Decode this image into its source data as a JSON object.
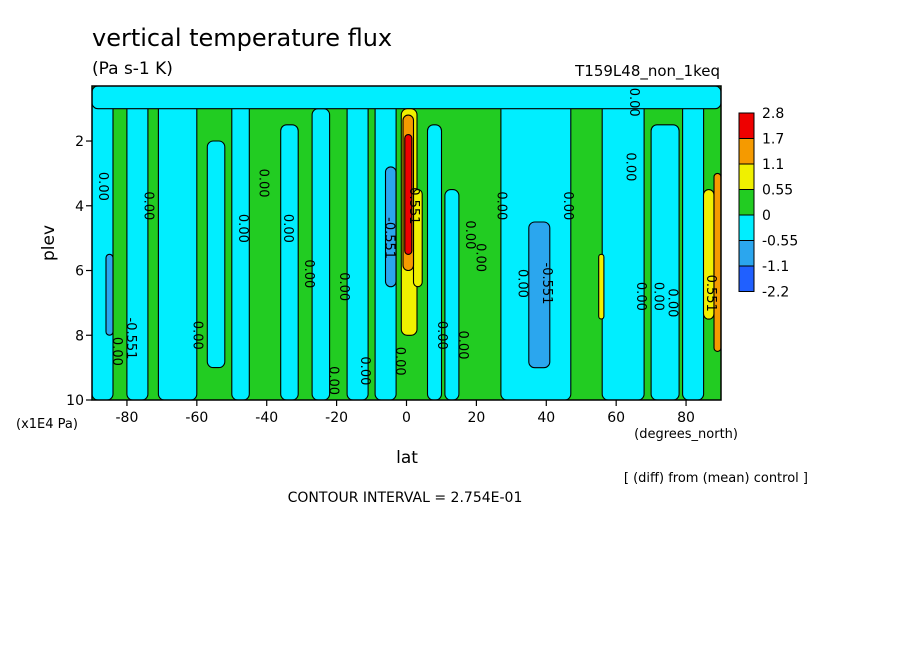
{
  "chart_data": {
    "type": "heatmap",
    "title": "vertical temperature flux",
    "units": "(Pa s-1 K)",
    "run_label": "T159L48_non_1keq",
    "xlabel": "lat",
    "ylabel": "plev",
    "x_units": "(degrees_north)",
    "y_units": "(x1E4 Pa)",
    "diff_note": "[ (diff) from (mean) control ]",
    "contour_interval": "CONTOUR INTERVAL = 2.754E-01",
    "xlim": [
      -90,
      90
    ],
    "ylim": [
      10,
      0.3
    ],
    "x_ticks": [
      -80,
      -60,
      -40,
      -20,
      0,
      20,
      40,
      60,
      80
    ],
    "x_tick_labels": [
      "-80",
      "-60",
      "-40",
      "-20",
      "0",
      "20",
      "40",
      "60",
      "80"
    ],
    "y_ticks": [
      2,
      4,
      6,
      8,
      10
    ],
    "y_tick_labels": [
      "2",
      "4",
      "6",
      "8",
      "10"
    ],
    "colorbar": {
      "labels": [
        "2.8",
        "1.7",
        "1.1",
        "0.55",
        "0",
        "-0.55",
        "-1.1",
        "-2.2"
      ],
      "colors": [
        "#ee0000",
        "#f59a00",
        "#f0f000",
        "#22cc22",
        "#00eeff",
        "#2ba6ee",
        "#2060ff"
      ]
    },
    "background_color": "#22cc22",
    "bands": [
      {
        "x0": -90,
        "x1": -84,
        "y0": 0.3,
        "y1": 10,
        "level": "-0.55"
      },
      {
        "x0": -80,
        "x1": -74,
        "y0": 0.3,
        "y1": 10,
        "level": "-0.55"
      },
      {
        "x0": -71,
        "x1": -60,
        "y0": 0.5,
        "y1": 10,
        "level": "-0.55"
      },
      {
        "x0": -57,
        "x1": -52,
        "y0": 2,
        "y1": 9,
        "level": "-0.55"
      },
      {
        "x0": -50,
        "x1": -45,
        "y0": 0.6,
        "y1": 10,
        "level": "-0.55"
      },
      {
        "x0": -36,
        "x1": -31,
        "y0": 1.5,
        "y1": 10,
        "level": "-0.55"
      },
      {
        "x0": -27,
        "x1": -22,
        "y0": 1,
        "y1": 10,
        "level": "-0.55"
      },
      {
        "x0": -17,
        "x1": -11,
        "y0": 0.5,
        "y1": 10,
        "level": "-0.55"
      },
      {
        "x0": -9,
        "x1": -3,
        "y0": 0.5,
        "y1": 10,
        "level": "-0.55"
      },
      {
        "x0": 6,
        "x1": 10,
        "y0": 1.5,
        "y1": 10,
        "level": "-0.55"
      },
      {
        "x0": 11,
        "x1": 15,
        "y0": 3.5,
        "y1": 10,
        "level": "-0.55"
      },
      {
        "x0": 27,
        "x1": 47,
        "y0": 0.3,
        "y1": 10,
        "level": "-0.55"
      },
      {
        "x0": 56,
        "x1": 68,
        "y0": 0.8,
        "y1": 10,
        "level": "-0.55"
      },
      {
        "x0": 70,
        "x1": 78,
        "y0": 1.5,
        "y1": 10,
        "level": "-0.55"
      },
      {
        "x0": 79,
        "x1": 85,
        "y0": 0.3,
        "y1": 10,
        "level": "-0.55"
      },
      {
        "x0": -90,
        "x1": 90,
        "y0": 0.3,
        "y1": 1.0,
        "level": "-0.55"
      },
      {
        "x0": -6,
        "x1": -3,
        "y0": 2.8,
        "y1": 6.5,
        "level": "-1.1"
      },
      {
        "x0": 35,
        "x1": 41,
        "y0": 4.5,
        "y1": 9,
        "level": "-1.1"
      },
      {
        "x0": -86,
        "x1": -84,
        "y0": 5.5,
        "y1": 8,
        "level": "-1.1"
      },
      {
        "x0": -1.5,
        "x1": 3,
        "y0": 1.0,
        "y1": 8,
        "level": "0.55"
      },
      {
        "x0": 2,
        "x1": 4.5,
        "y0": 3.5,
        "y1": 6.5,
        "level": "0.55"
      },
      {
        "x0": -1,
        "x1": 2,
        "y0": 1.2,
        "y1": 6,
        "level": "1.1"
      },
      {
        "x0": -0.5,
        "x1": 1.5,
        "y0": 1.8,
        "y1": 5.5,
        "level": "1.7"
      },
      {
        "x0": 55,
        "x1": 56.5,
        "y0": 5.5,
        "y1": 7.5,
        "level": "0.55"
      },
      {
        "x0": 85,
        "x1": 88,
        "y0": 3.5,
        "y1": 7.5,
        "level": "0.55"
      },
      {
        "x0": 88,
        "x1": 90,
        "y0": 3.0,
        "y1": 8.5,
        "level": "1.1"
      }
    ],
    "contour_labels": [
      {
        "x": -88,
        "y": 3.4,
        "text": "0.00"
      },
      {
        "x": -75,
        "y": 4.0,
        "text": "0.00"
      },
      {
        "x": -84,
        "y": 8.5,
        "text": "0.00"
      },
      {
        "x": -80,
        "y": 8.1,
        "text": "-0.551"
      },
      {
        "x": -61,
        "y": 8.0,
        "text": "0.00"
      },
      {
        "x": -48,
        "y": 4.7,
        "text": "0.00"
      },
      {
        "x": -42,
        "y": 3.3,
        "text": "0.00"
      },
      {
        "x": -35,
        "y": 4.7,
        "text": "0.00"
      },
      {
        "x": -29,
        "y": 6.1,
        "text": "0.00"
      },
      {
        "x": -22,
        "y": 9.4,
        "text": "0.00"
      },
      {
        "x": -19,
        "y": 6.5,
        "text": "0.00"
      },
      {
        "x": -13,
        "y": 9.1,
        "text": "0.00"
      },
      {
        "x": -6,
        "y": 5.0,
        "text": "-0.551"
      },
      {
        "x": 1,
        "y": 4.0,
        "text": "0.551"
      },
      {
        "x": -3,
        "y": 8.8,
        "text": "0.00"
      },
      {
        "x": 9,
        "y": 8.0,
        "text": "0.00"
      },
      {
        "x": 15,
        "y": 8.3,
        "text": "0.00"
      },
      {
        "x": 17,
        "y": 4.9,
        "text": "0.00"
      },
      {
        "x": 20,
        "y": 5.6,
        "text": "0.00"
      },
      {
        "x": 26,
        "y": 4.0,
        "text": "0.00"
      },
      {
        "x": 32,
        "y": 6.4,
        "text": "0.00"
      },
      {
        "x": 39,
        "y": 6.4,
        "text": "-0.551"
      },
      {
        "x": 45,
        "y": 4.0,
        "text": "0.00"
      },
      {
        "x": 63,
        "y": 2.8,
        "text": "0.00"
      },
      {
        "x": 64,
        "y": 0.8,
        "text": "0.00"
      },
      {
        "x": 66,
        "y": 6.8,
        "text": "0.00"
      },
      {
        "x": 71,
        "y": 6.8,
        "text": "0.00"
      },
      {
        "x": 75,
        "y": 7.0,
        "text": "0.00"
      },
      {
        "x": 86,
        "y": 6.7,
        "text": "0.551"
      }
    ]
  }
}
